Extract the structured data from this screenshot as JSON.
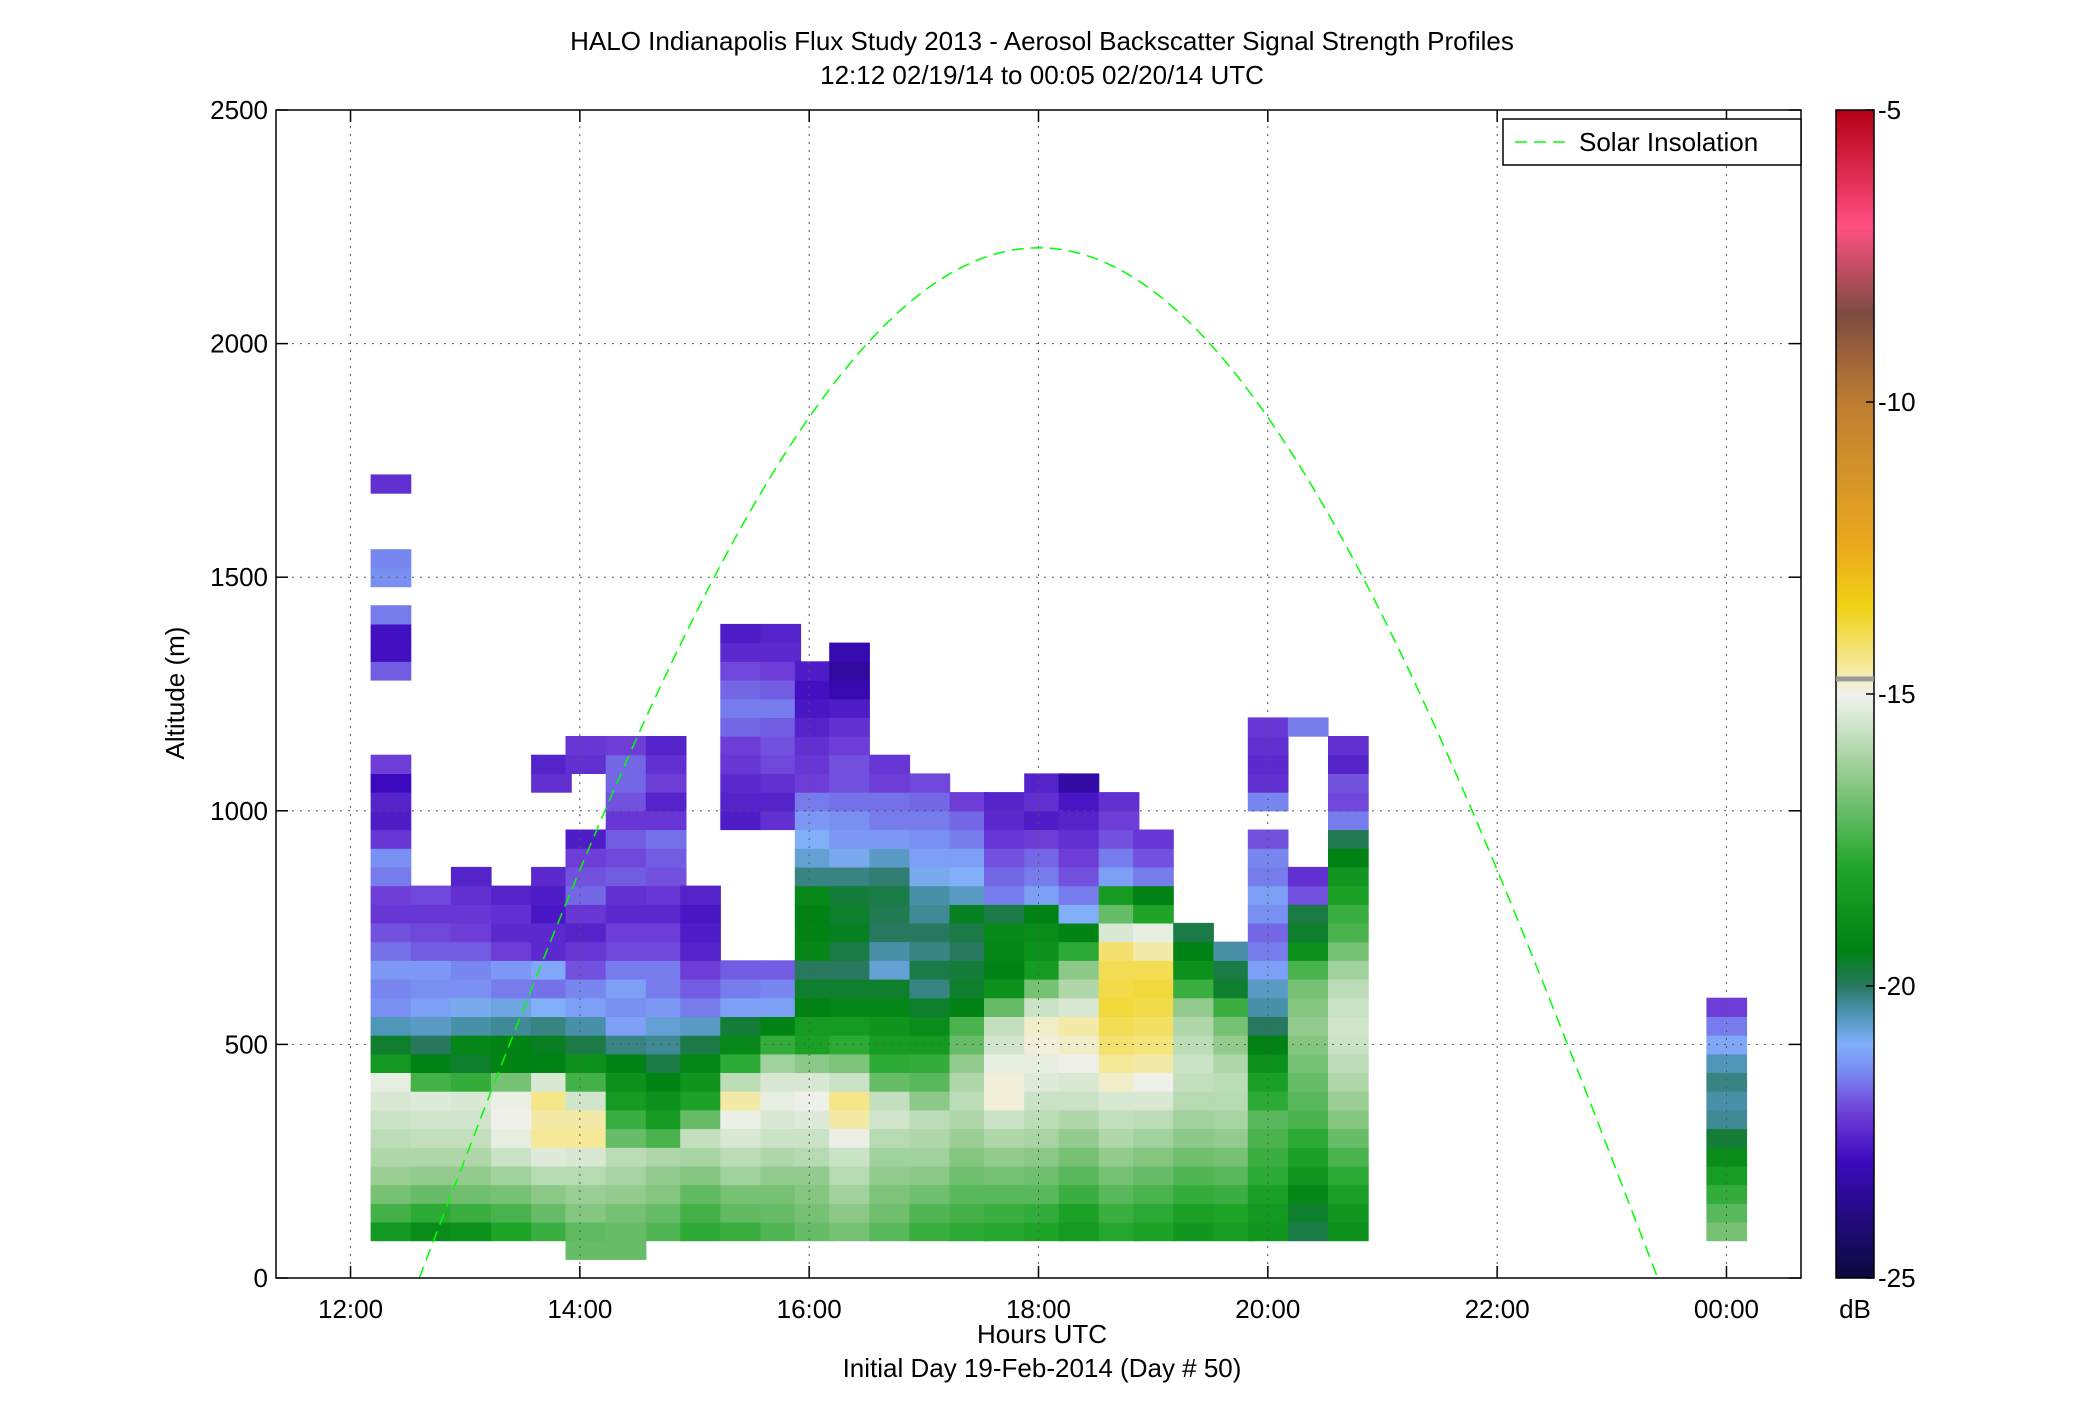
{
  "chart_data": {
    "type": "heatmap",
    "title": "HALO Indianapolis Flux Study 2013 - Aerosol Backscatter Signal Strength Profiles",
    "subtitle": "12:12 02/19/14 to 00:05 02/20/14  UTC",
    "xlabel": "Hours UTC",
    "xlabel2": "Initial Day 19-Feb-2014 (Day # 50)",
    "ylabel": "Altitude (m)",
    "xlim": [
      11.35,
      24.65
    ],
    "ylim": [
      0,
      2500
    ],
    "x_ticks": [
      12,
      14,
      16,
      18,
      20,
      22,
      24
    ],
    "x_tick_labels": [
      "12:00",
      "14:00",
      "16:00",
      "18:00",
      "20:00",
      "22:00",
      "00:00"
    ],
    "y_ticks": [
      0,
      500,
      1000,
      1500,
      2000,
      2500
    ],
    "y_tick_labels": [
      "0",
      "500",
      "1000",
      "1500",
      "2000",
      "2500"
    ],
    "grid": true,
    "legend": {
      "position": "top-right",
      "entries": [
        "Solar Insolation"
      ]
    },
    "colorbar": {
      "min": -25,
      "max": -5,
      "unit": "dB",
      "ticks": [
        -5,
        -10,
        -15,
        -20,
        -25
      ],
      "tick_labels": [
        "-5",
        "-10",
        "-15",
        "-20",
        "-25"
      ]
    },
    "bin_height_m": 40,
    "profiles": [
      {
        "time": 12.35,
        "bottom_m": 80,
        "values": [
          -18.5,
          -17.5,
          -16.8,
          -16.3,
          -16.0,
          -15.8,
          -15.6,
          -15.4,
          -15.2,
          -18.5,
          -19.6,
          -20.5,
          -21.4,
          -21.5,
          -21.3,
          -21.7,
          -22.0,
          -22.3,
          -22.2,
          -21.6,
          -21.4,
          -22.3,
          -22.7,
          -22.6,
          -23.0,
          -22.2,
          null,
          null,
          null,
          null,
          -21.9,
          -22.9,
          -22.9,
          -21.6,
          null,
          -21.4,
          -21.5,
          null,
          null,
          null,
          -22.4
        ]
      },
      {
        "time": 12.7,
        "bottom_m": 80,
        "values": [
          -19.0,
          -17.8,
          -17.0,
          -16.4,
          -16.0,
          -15.7,
          -15.5,
          -15.3,
          -17.5,
          -19.4,
          -20.0,
          -20.6,
          -21.2,
          -21.4,
          -21.3,
          -21.9,
          -22.1,
          -22.3,
          -22.1
        ]
      },
      {
        "time": 13.05,
        "bottom_m": 80,
        "values": [
          -18.8,
          -17.6,
          -16.9,
          -16.4,
          -16.0,
          -15.7,
          -15.5,
          -15.4,
          -17.7,
          -19.6,
          -19.2,
          -20.4,
          -20.9,
          -21.4,
          -21.5,
          -21.9,
          -22.2,
          -22.3,
          -22.4,
          -22.6
        ]
      },
      {
        "time": 13.4,
        "bottom_m": 80,
        "values": [
          -18.0,
          -17.4,
          -16.8,
          -16.2,
          -15.6,
          -15.2,
          -15.0,
          -15.1,
          -16.8,
          -19.3,
          -19.4,
          -20.3,
          -20.8,
          -21.6,
          -21.3,
          -22.2,
          -22.5,
          -22.4,
          -22.6
        ]
      },
      {
        "time": 13.75,
        "bottom_m": 80,
        "values": [
          -17.6,
          -17.0,
          -16.5,
          -15.9,
          -15.3,
          -14.5,
          -14.6,
          -14.4,
          -15.4,
          -19.4,
          -19.5,
          -20.2,
          -21.0,
          -21.7,
          -21.1,
          -22.5,
          -22.5,
          -22.8,
          -22.7,
          -22.5,
          null,
          null,
          null,
          null,
          -22.4,
          -22.6
        ]
      },
      {
        "time": 14.05,
        "bottom_m": 40,
        "values": [
          -17.0,
          -17.1,
          -16.6,
          -16.3,
          -15.9,
          -15.4,
          -14.5,
          -14.6,
          -15.5,
          -17.5,
          -18.8,
          -19.8,
          -20.4,
          -21.2,
          -21.5,
          -22.0,
          -22.3,
          -22.6,
          -22.3,
          -21.8,
          -22.0,
          -22.2,
          -22.7,
          null,
          null,
          null,
          -22.4,
          -22.3
        ]
      },
      {
        "time": 14.4,
        "bottom_m": 40,
        "values": [
          -17.0,
          -17.0,
          -16.8,
          -16.4,
          -16.1,
          -15.8,
          -17.0,
          -17.6,
          -18.4,
          -18.8,
          -19.4,
          -20.2,
          -21.2,
          -21.4,
          -21.2,
          -21.6,
          -22.1,
          -22.2,
          -22.5,
          -22.4,
          -21.9,
          -22.1,
          -21.9,
          -22.3,
          -22.0,
          -21.8,
          -21.8,
          -22.2
        ]
      },
      {
        "time": 14.75,
        "bottom_m": 80,
        "values": [
          -17.3,
          -17.0,
          -16.6,
          -16.4,
          -16.0,
          -17.4,
          -18.4,
          -18.8,
          -19.3,
          -19.8,
          -20.3,
          -20.7,
          -21.3,
          -21.6,
          -21.6,
          -22.1,
          -22.2,
          -22.5,
          -22.3,
          -22.0,
          -21.9,
          -21.7,
          -22.3,
          -22.6,
          -22.2,
          -22.4,
          -22.6
        ]
      },
      {
        "time": 15.05,
        "bottom_m": 80,
        "values": [
          -17.8,
          -17.5,
          -17.1,
          -16.6,
          -16.1,
          -15.7,
          -17.0,
          -18.1,
          -18.7,
          -19.2,
          -19.8,
          -20.6,
          -21.6,
          -21.9,
          -22.2,
          -22.6,
          -22.7,
          -22.8,
          -22.6
        ]
      },
      {
        "time": 15.4,
        "bottom_m": 80,
        "values": [
          -17.6,
          -17.1,
          -16.8,
          -16.2,
          -15.8,
          -15.4,
          -15.1,
          -14.6,
          -15.8,
          -17.8,
          -19.1,
          -19.7,
          -21.2,
          -21.6,
          -21.9,
          null,
          null,
          null,
          null,
          null,
          null,
          null,
          -22.7,
          -22.6,
          -22.5,
          -22.3,
          -22.2,
          -21.8,
          -21.6,
          -21.8,
          -22.1,
          -22.5,
          -22.7
        ]
      },
      {
        "time": 15.75,
        "bottom_m": 80,
        "values": [
          -17.3,
          -17.0,
          -16.8,
          -16.4,
          -16.0,
          -15.6,
          -15.4,
          -15.2,
          -15.4,
          -16.2,
          -17.7,
          -19.4,
          -21.2,
          -21.5,
          -21.9,
          null,
          null,
          null,
          null,
          null,
          null,
          null,
          -22.4,
          -22.6,
          -22.4,
          -22.1,
          -22.0,
          -21.9,
          -21.6,
          -21.9,
          -22.2,
          -22.5,
          -22.6
        ]
      },
      {
        "time": 16.05,
        "bottom_m": 80,
        "values": [
          -17.0,
          -16.8,
          -16.6,
          -16.4,
          -15.9,
          -15.6,
          -15.3,
          -15.0,
          -15.4,
          -16.5,
          -18.2,
          -18.4,
          -19.4,
          -19.6,
          -20.0,
          -19.2,
          -19.3,
          -19.4,
          -19.1,
          -20.2,
          -20.7,
          -21.0,
          -21.3,
          -21.6,
          -22.2,
          -22.3,
          -22.4,
          -22.6,
          -22.8,
          -22.9,
          -22.7
        ]
      },
      {
        "time": 16.35,
        "bottom_m": 80,
        "values": [
          -16.8,
          -16.5,
          -16.2,
          -15.9,
          -15.6,
          -15.1,
          -14.6,
          -14.4,
          -15.6,
          -16.7,
          -17.8,
          -18.4,
          -19.2,
          -19.6,
          -20.0,
          -19.8,
          -19.5,
          -19.6,
          -19.7,
          -20.2,
          -20.9,
          -21.3,
          -21.4,
          -21.7,
          -22.0,
          -22.0,
          -22.2,
          -22.4,
          -22.7,
          -23.2,
          -23.5,
          -23.2
        ]
      },
      {
        "time": 16.7,
        "bottom_m": 80,
        "values": [
          -17.2,
          -16.9,
          -16.7,
          -16.4,
          -16.2,
          -15.9,
          -15.5,
          -15.7,
          -17.0,
          -17.8,
          -18.3,
          -18.7,
          -19.2,
          -19.6,
          -20.7,
          -20.4,
          -20.0,
          -19.9,
          -19.8,
          -20.1,
          -20.6,
          -21.3,
          -21.6,
          -21.7,
          -22.2,
          -22.3
        ]
      },
      {
        "time": 17.05,
        "bottom_m": 80,
        "values": [
          -17.6,
          -17.3,
          -16.9,
          -16.5,
          -16.2,
          -16.0,
          -15.8,
          -16.5,
          -17.2,
          -17.7,
          -18.4,
          -19.0,
          -19.6,
          -20.2,
          -19.8,
          -20.2,
          -20.0,
          -20.3,
          -20.4,
          -20.9,
          -21.2,
          -21.4,
          -21.6,
          -21.8,
          -22.1
        ]
      },
      {
        "time": 17.4,
        "bottom_m": 80,
        "values": [
          -17.8,
          -17.5,
          -17.2,
          -16.9,
          -16.6,
          -16.3,
          -16.0,
          -15.8,
          -16.0,
          -16.4,
          -17.0,
          -17.4,
          -19.4,
          -19.6,
          -19.7,
          -20.0,
          -19.8,
          -19.5,
          -20.6,
          -21.0,
          -21.2,
          -21.6,
          -21.8,
          -22.2
        ]
      },
      {
        "time": 17.7,
        "bottom_m": 80,
        "values": [
          -17.9,
          -17.6,
          -17.2,
          -16.8,
          -16.4,
          -16.0,
          -15.6,
          -14.9,
          -14.9,
          -15.2,
          -15.5,
          -15.7,
          -17.0,
          -18.8,
          -19.4,
          -19.2,
          -19.1,
          -19.8,
          -21.6,
          -21.8,
          -22.0,
          -22.3,
          -22.5,
          -22.6
        ]
      },
      {
        "time": 18.05,
        "bottom_m": 80,
        "values": [
          -18.0,
          -17.7,
          -17.2,
          -16.9,
          -16.5,
          -16.1,
          -15.8,
          -15.6,
          -15.3,
          -15.2,
          -14.9,
          -14.8,
          -15.6,
          -16.8,
          -18.4,
          -18.8,
          -19.0,
          -19.4,
          -21.2,
          -21.6,
          -21.8,
          -22.2,
          -22.7,
          -22.4,
          -22.6
        ]
      },
      {
        "time": 18.35,
        "bottom_m": 80,
        "values": [
          -18.4,
          -18.1,
          -17.6,
          -17.2,
          -16.8,
          -16.4,
          -16.0,
          -15.6,
          -15.4,
          -15.0,
          -14.8,
          -14.6,
          -15.4,
          -16.0,
          -16.5,
          -17.8,
          -19.3,
          -21.0,
          -21.6,
          -22.0,
          -22.2,
          -22.4,
          -22.6,
          -22.8,
          -23.4
        ]
      },
      {
        "time": 18.7,
        "bottom_m": 80,
        "values": [
          -17.9,
          -17.6,
          -17.2,
          -16.8,
          -16.4,
          -16.0,
          -15.7,
          -15.4,
          -14.8,
          -14.5,
          -14.2,
          -14.0,
          -13.8,
          -13.9,
          -14.0,
          -14.2,
          -15.4,
          -17.0,
          -18.4,
          -21.2,
          -21.6,
          -22.0,
          -22.2,
          -22.4
        ]
      },
      {
        "time": 19.0,
        "bottom_m": 80,
        "values": [
          -18.1,
          -17.8,
          -17.4,
          -17.0,
          -16.6,
          -16.2,
          -15.8,
          -15.4,
          -15.0,
          -14.6,
          -14.3,
          -14.1,
          -13.9,
          -13.8,
          -14.0,
          -14.6,
          -15.2,
          -18.0,
          -19.4,
          -21.6,
          -22.0,
          -22.3
        ]
      },
      {
        "time": 19.35,
        "bottom_m": 80,
        "values": [
          -18.6,
          -18.2,
          -17.7,
          -17.3,
          -16.9,
          -16.5,
          -16.2,
          -15.9,
          -15.7,
          -15.6,
          -15.8,
          -16.0,
          -16.4,
          -17.6,
          -18.8,
          -19.4,
          -19.8
        ]
      },
      {
        "time": 19.7,
        "bottom_m": 80,
        "values": [
          -18.3,
          -18.0,
          -17.6,
          -17.2,
          -16.8,
          -16.4,
          -16.1,
          -15.9,
          -15.8,
          -16.0,
          -16.4,
          -16.8,
          -17.6,
          -19.6,
          -19.8,
          -20.4
        ]
      },
      {
        "time": 20.0,
        "bottom_m": 80,
        "values": [
          -18.6,
          -18.5,
          -18.2,
          -17.8,
          -17.6,
          -17.4,
          -17.2,
          -17.8,
          -18.2,
          -18.8,
          -19.4,
          -20.0,
          -20.4,
          -20.6,
          -21.2,
          -21.6,
          -21.8,
          -21.4,
          -21.2,
          -21.6,
          -21.5,
          -22.0,
          null,
          -21.5,
          -22.4,
          -22.5,
          -22.4,
          -22.3
        ]
      },
      {
        "time": 20.35,
        "bottom_m": 80,
        "values": [
          -19.8,
          -19.6,
          -19.2,
          -18.6,
          -18.2,
          -17.8,
          -17.4,
          -17.2,
          -17.0,
          -16.8,
          -16.6,
          -16.4,
          -16.6,
          -16.8,
          -17.4,
          -18.8,
          -19.6,
          -19.8,
          -22.0,
          -22.4,
          null,
          null,
          null,
          null,
          null,
          null,
          null,
          -21.6
        ]
      },
      {
        "time": 20.7,
        "bottom_m": 80,
        "values": [
          -18.8,
          -18.6,
          -18.2,
          -17.8,
          -17.4,
          -17.0,
          -16.6,
          -16.3,
          -16.0,
          -15.8,
          -15.6,
          -15.5,
          -15.6,
          -15.8,
          -16.2,
          -16.8,
          -17.4,
          -17.6,
          -18.2,
          -18.6,
          -19.4,
          -19.9,
          -21.6,
          -22.1,
          -22.0,
          -22.6,
          -22.4
        ]
      },
      {
        "time": 24.0,
        "bottom_m": 80,
        "values": [
          -16.8,
          -17.2,
          -17.7,
          -18.3,
          -19.0,
          -19.7,
          -20.3,
          -20.4,
          -20.2,
          -20.5,
          -21.1,
          -21.6,
          -22.2
        ]
      }
    ]
  },
  "solar_curve": {
    "label": "Solar Insolation",
    "color": "#00ff00",
    "peak_time": 18.0,
    "peak_altitude": 2205,
    "zero_start": 12.6,
    "zero_end": 23.4
  }
}
